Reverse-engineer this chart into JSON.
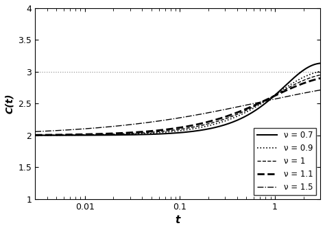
{
  "title": "",
  "xlabel": "t",
  "ylabel": "C(t)",
  "xlim": [
    0.003,
    3.0
  ],
  "ylim": [
    1.0,
    4.0
  ],
  "yticks": [
    1.0,
    1.5,
    2.0,
    2.5,
    3.0,
    3.5,
    4.0
  ],
  "ytick_labels": [
    "1",
    "1.5",
    "2",
    "2.5",
    "3",
    "3.5",
    "4"
  ],
  "C_inf": 3.0,
  "C_0": 2.0,
  "nu_values": [
    0.7,
    0.9,
    1.0,
    1.1,
    1.5
  ],
  "line_styles": [
    "-",
    ":",
    "--",
    "--",
    "-."
  ],
  "line_widths": [
    1.5,
    1.2,
    1.0,
    2.0,
    1.0
  ],
  "legend_labels": [
    "ν = 0.7",
    "ν = 0.9",
    "ν = 1",
    "ν = 1.1",
    "ν = 1.5"
  ],
  "legend_loc": "lower right",
  "background_color": "#ffffff",
  "hline_y": 3.0,
  "hline_style": ":",
  "hline_color": "#888888",
  "xtick_labels": [
    "0.01",
    "0.1",
    "1"
  ],
  "xtick_positions": [
    0.01,
    0.1,
    1.0
  ]
}
